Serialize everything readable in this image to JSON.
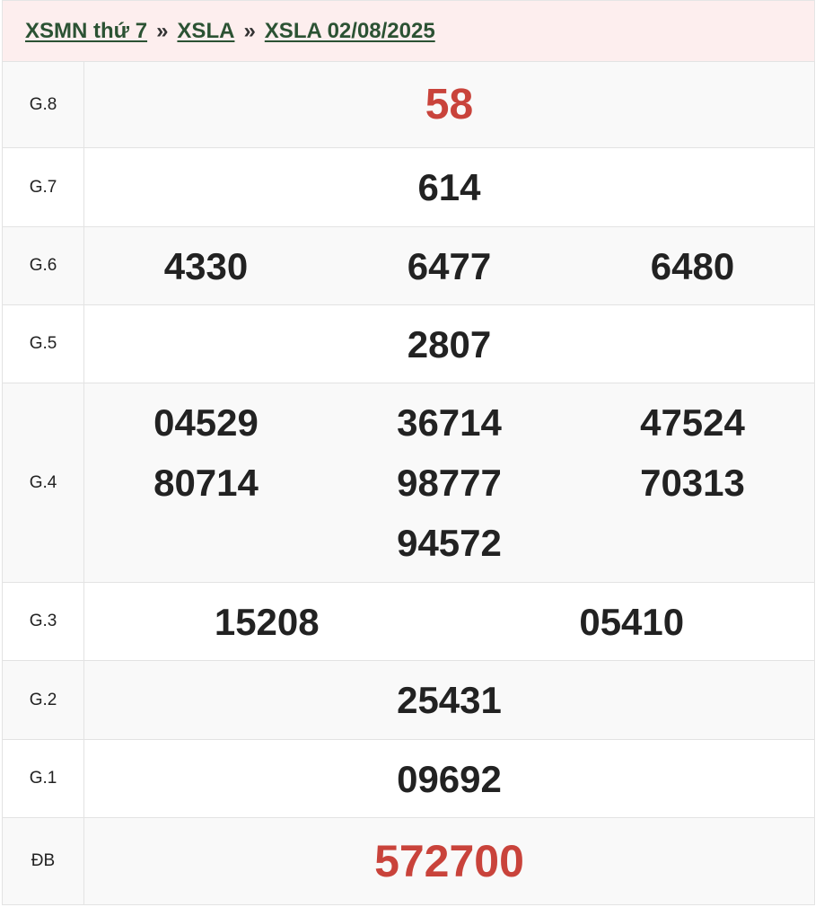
{
  "breadcrumb": [
    {
      "label": "XSMN thứ 7"
    },
    {
      "label": "XSLA"
    },
    {
      "label": "XSLA 02/08/2025"
    }
  ],
  "separator": "»",
  "colors": {
    "accent_red": "#c9433b",
    "link_green": "#2b5233",
    "header_bg": "#fdeeee"
  },
  "rows": [
    {
      "label": "G.8",
      "cols": [
        [
          "58"
        ]
      ],
      "highlight": true
    },
    {
      "label": "G.7",
      "cols": [
        [
          "614"
        ]
      ]
    },
    {
      "label": "G.6",
      "cols": [
        [
          "4330"
        ],
        [
          "6477"
        ],
        [
          "6480"
        ]
      ]
    },
    {
      "label": "G.5",
      "cols": [
        [
          "2807"
        ]
      ]
    },
    {
      "label": "G.4",
      "cols": [
        [
          "04529",
          "80714"
        ],
        [
          "36714",
          "98777",
          "94572"
        ],
        [
          "47524",
          "70313"
        ]
      ]
    },
    {
      "label": "G.3",
      "cols": [
        [
          "15208"
        ],
        [
          "05410"
        ]
      ]
    },
    {
      "label": "G.2",
      "cols": [
        [
          "25431"
        ]
      ]
    },
    {
      "label": "G.1",
      "cols": [
        [
          "09692"
        ]
      ]
    },
    {
      "label": "ĐB",
      "cols": [
        [
          "572700"
        ]
      ],
      "highlight": true
    }
  ]
}
